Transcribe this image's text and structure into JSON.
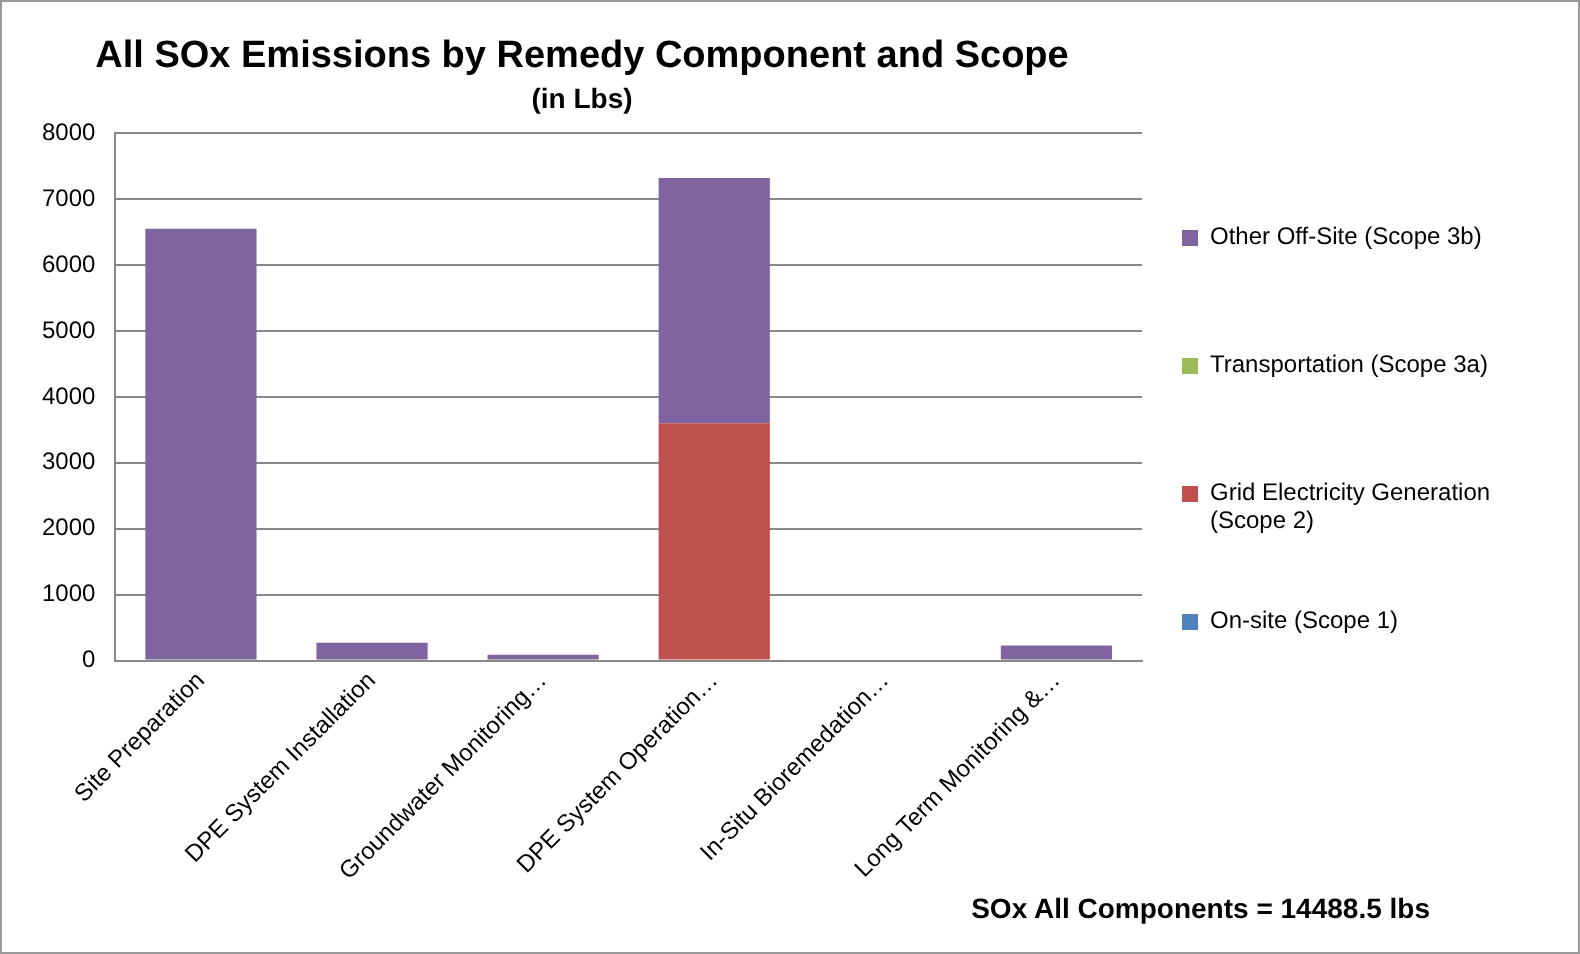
{
  "chart_data": {
    "type": "bar",
    "title": "All SOx Emissions by Remedy Component and Scope",
    "subtitle": "(in Lbs)",
    "categories": [
      "Site Preparation",
      "DPE System Installation",
      "Groundwater Monitoring…",
      "DPE System Operation…",
      "In-Situ Bioremedation…",
      "Long Term Monitoring &…"
    ],
    "stacked": true,
    "series": [
      {
        "name": "On-site (Scope 1)",
        "color": "#4f81bd",
        "values": [
          0,
          0,
          0,
          0,
          0,
          0
        ]
      },
      {
        "name": "Grid Electricity Generation (Scope 2)",
        "color": "#c0504d",
        "values": [
          0,
          0,
          0,
          3600,
          0,
          0
        ]
      },
      {
        "name": "Transportation (Scope 3a)",
        "color": "#9bbb59",
        "values": [
          0,
          0,
          0,
          0,
          0,
          0
        ]
      },
      {
        "name": "Other Off-Site (Scope 3b)",
        "color": "#8064a2",
        "values": [
          6550,
          270,
          90,
          3720,
          null,
          230
        ]
      }
    ],
    "ylim": [
      0,
      8000
    ],
    "yticks": [
      0,
      1000,
      2000,
      3000,
      4000,
      5000,
      6000,
      7000,
      8000
    ],
    "grid": "y",
    "legend": "right",
    "annotations": [
      "SOx All Components = 14488.5 lbs"
    ]
  }
}
